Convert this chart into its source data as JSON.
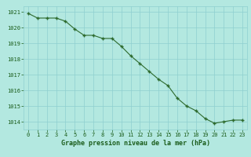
{
  "x": [
    0,
    1,
    2,
    3,
    4,
    5,
    6,
    7,
    8,
    9,
    10,
    11,
    12,
    13,
    14,
    15,
    16,
    17,
    18,
    19,
    20,
    21,
    22,
    23
  ],
  "y": [
    1020.9,
    1020.6,
    1020.6,
    1020.6,
    1020.4,
    1019.9,
    1019.5,
    1019.5,
    1019.3,
    1019.3,
    1018.8,
    1018.2,
    1017.7,
    1017.2,
    1016.7,
    1016.3,
    1015.5,
    1015.0,
    1014.7,
    1014.2,
    1013.9,
    1014.0,
    1014.1,
    1014.1
  ],
  "line_color": "#2d6a2d",
  "marker_color": "#2d6a2d",
  "bg_color": "#b3e8e0",
  "grid_color": "#8ecfcf",
  "xlabel": "Graphe pression niveau de la mer (hPa)",
  "xlabel_color": "#1a5c1a",
  "tick_color": "#1a5c1a",
  "ylim_min": 1013.5,
  "ylim_max": 1021.35,
  "yticks": [
    1014,
    1015,
    1016,
    1017,
    1018,
    1019,
    1020,
    1021
  ],
  "xticks": [
    0,
    1,
    2,
    3,
    4,
    5,
    6,
    7,
    8,
    9,
    10,
    11,
    12,
    13,
    14,
    15,
    16,
    17,
    18,
    19,
    20,
    21,
    22,
    23
  ]
}
